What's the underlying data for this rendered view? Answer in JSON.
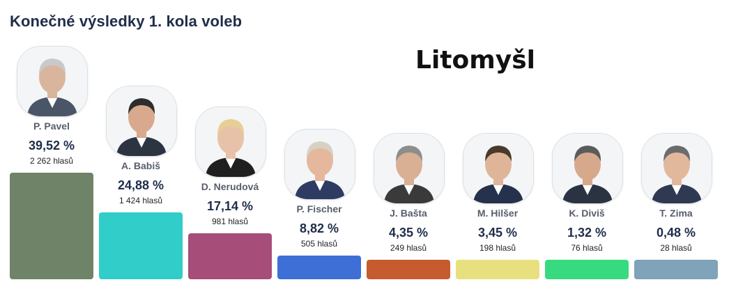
{
  "header": {
    "title": "Konečné výsledky 1. kola voleb",
    "place": "Litomyšl"
  },
  "colors": {
    "P. Pavel": "#6e8367",
    "A. Babiš": "#31cdc9",
    "D. Nerudová": "#a64d79",
    "P. Fischer": "#3e6fd6",
    "J. Bašta": "#c55b2e",
    "M. Hilšer": "#e8e07e",
    "K. Diviš": "#38da7f",
    "T. Zima": "#7fa3b8"
  },
  "chart_data": {
    "type": "bar",
    "title": "Konečné výsledky 1. kola voleb",
    "subtitle": "Litomyšl",
    "categories": [
      "P. Pavel",
      "A. Babiš",
      "D. Nerudová",
      "P. Fischer",
      "J. Bašta",
      "M. Hilšer",
      "K. Diviš",
      "T. Zima"
    ],
    "values": [
      39.52,
      24.88,
      17.14,
      8.82,
      4.35,
      3.45,
      1.32,
      0.48
    ],
    "value_labels": [
      "39,52 %",
      "24,88 %",
      "17,14 %",
      "8,82 %",
      "4,35 %",
      "3,45 %",
      "1,32 %",
      "0,48 %"
    ],
    "votes": [
      2262,
      1424,
      981,
      505,
      249,
      198,
      76,
      28
    ],
    "vote_labels": [
      "2 262 hlasů",
      "1 424 hlasů",
      "981 hlasů",
      "505 hlasů",
      "249 hlasů",
      "198 hlasů",
      "76 hlasů",
      "28 hlasů"
    ],
    "grid": false,
    "legend": "none"
  }
}
